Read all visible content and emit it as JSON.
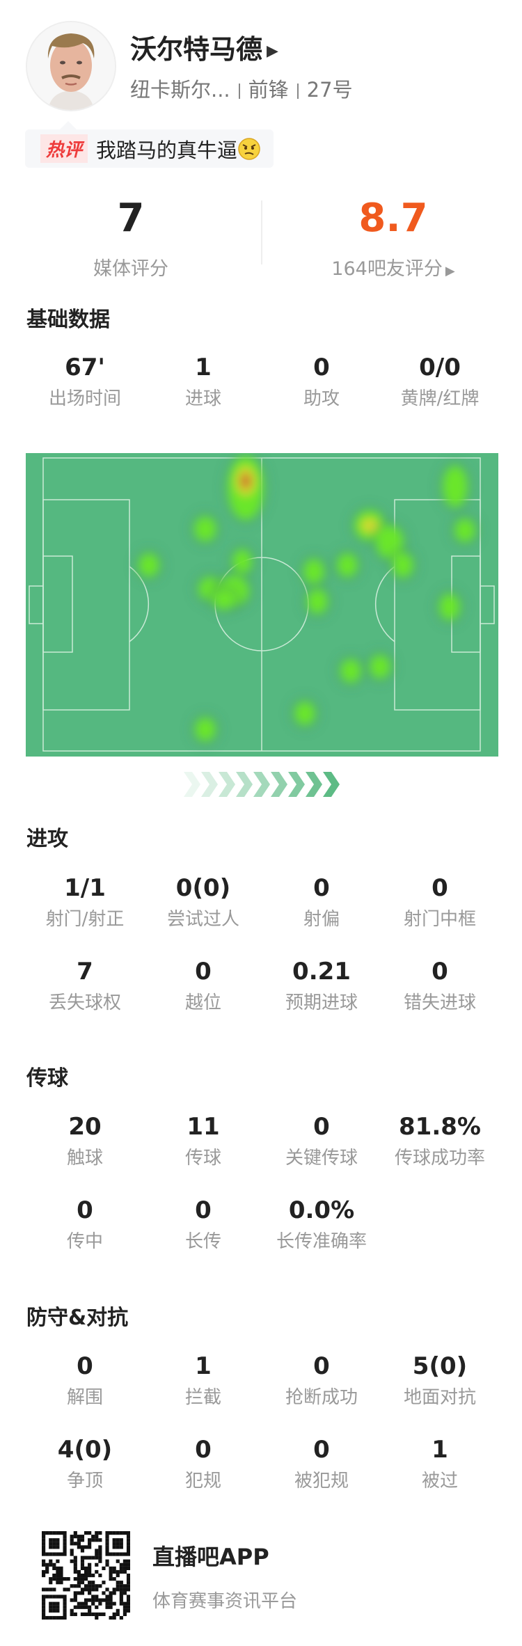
{
  "player": {
    "name": "沃尔特马德",
    "team": "纽卡斯尔...",
    "position": "前锋",
    "number": "27号"
  },
  "hot_comment": {
    "tag": "热评",
    "text": "我踏马的真牛逼",
    "emoji": "smirk-face"
  },
  "ratings": {
    "media": {
      "value": "7",
      "label": "媒体评分"
    },
    "fans": {
      "value": "8.7",
      "label": "164吧友评分"
    }
  },
  "colors": {
    "accent_orange": "#f05a1e",
    "pitch_green": "#55b880",
    "arrow_green": "#5dbb85"
  },
  "sections": {
    "basic": {
      "title": "基础数据",
      "stats": [
        {
          "v": "67'",
          "l": "出场时间"
        },
        {
          "v": "1",
          "l": "进球"
        },
        {
          "v": "0",
          "l": "助攻"
        },
        {
          "v": "0/0",
          "l": "黄牌/红牌"
        }
      ]
    },
    "attack": {
      "title": "进攻",
      "stats": [
        {
          "v": "1/1",
          "l": "射门/射正"
        },
        {
          "v": "0(0)",
          "l": "尝试过人"
        },
        {
          "v": "0",
          "l": "射偏"
        },
        {
          "v": "0",
          "l": "射门中框"
        },
        {
          "v": "7",
          "l": "丢失球权"
        },
        {
          "v": "0",
          "l": "越位"
        },
        {
          "v": "0.21",
          "l": "预期进球"
        },
        {
          "v": "0",
          "l": "错失进球"
        }
      ]
    },
    "passing": {
      "title": "传球",
      "stats": [
        {
          "v": "20",
          "l": "触球"
        },
        {
          "v": "11",
          "l": "传球"
        },
        {
          "v": "0",
          "l": "关键传球"
        },
        {
          "v": "81.8%",
          "l": "传球成功率"
        },
        {
          "v": "0",
          "l": "传中"
        },
        {
          "v": "0",
          "l": "长传"
        },
        {
          "v": "0.0%",
          "l": "长传准确率"
        }
      ]
    },
    "defense": {
      "title": "防守&对抗",
      "stats": [
        {
          "v": "0",
          "l": "解围"
        },
        {
          "v": "1",
          "l": "拦截"
        },
        {
          "v": "0",
          "l": "抢断成功"
        },
        {
          "v": "5(0)",
          "l": "地面对抗"
        },
        {
          "v": "4(0)",
          "l": "争顶"
        },
        {
          "v": "0",
          "l": "犯规"
        },
        {
          "v": "0",
          "l": "被犯规"
        },
        {
          "v": "1",
          "l": "被过"
        }
      ]
    }
  },
  "footer": {
    "app_name": "直播吧APP",
    "tagline": "体育赛事资讯平台"
  }
}
